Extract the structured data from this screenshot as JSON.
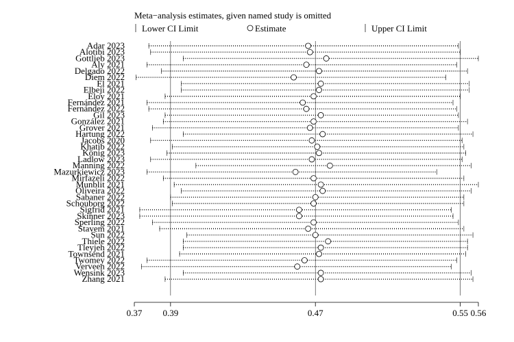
{
  "chart_data": {
    "type": "scatter",
    "title": "Meta−analysis estimates, given named study is omitted",
    "legend": {
      "placement": "top",
      "items": [
        {
          "marker": "line",
          "label": "Lower CI Limit"
        },
        {
          "marker": "circle",
          "label": "Estimate"
        },
        {
          "marker": "line",
          "label": "Upper CI Limit"
        }
      ]
    },
    "x_ticks": [
      "0.37",
      "0.39",
      "0.47",
      "0.55",
      "0.56"
    ],
    "x_tick_values": [
      0.37,
      0.39,
      0.47,
      0.55,
      0.56
    ],
    "xlim": [
      0.37,
      0.56
    ],
    "reference_lines": [
      0.39,
      0.47,
      0.55
    ],
    "series": [
      {
        "name": "Lower CI Limit",
        "values": [
          0.378,
          0.379,
          0.397,
          0.377,
          0.385,
          0.371,
          0.396,
          0.396,
          0.387,
          0.377,
          0.378,
          0.387,
          0.386,
          0.38,
          0.397,
          0.379,
          0.391,
          0.388,
          0.379,
          0.404,
          0.377,
          0.386,
          0.392,
          0.396,
          0.39,
          0.391,
          0.373,
          0.373,
          0.38,
          0.384,
          0.399,
          0.397,
          0.397,
          0.395,
          0.377,
          0.374,
          0.397,
          0.387
        ]
      },
      {
        "name": "Estimate",
        "values": [
          0.466,
          0.467,
          0.476,
          0.465,
          0.472,
          0.458,
          0.473,
          0.472,
          0.469,
          0.463,
          0.465,
          0.473,
          0.469,
          0.467,
          0.474,
          0.468,
          0.471,
          0.472,
          0.468,
          0.478,
          0.459,
          0.469,
          0.473,
          0.474,
          0.47,
          0.469,
          0.461,
          0.461,
          0.469,
          0.466,
          0.47,
          0.477,
          0.473,
          0.472,
          0.464,
          0.46,
          0.473,
          0.473
        ]
      },
      {
        "name": "Upper CI Limit",
        "values": [
          0.549,
          0.55,
          0.56,
          0.548,
          0.554,
          0.542,
          0.555,
          0.555,
          0.55,
          0.546,
          0.548,
          0.549,
          0.554,
          0.549,
          0.557,
          0.551,
          0.552,
          0.553,
          0.551,
          0.556,
          0.537,
          0.552,
          0.56,
          0.556,
          0.552,
          0.552,
          0.545,
          0.546,
          0.549,
          0.552,
          0.557,
          0.554,
          0.554,
          0.553,
          0.548,
          0.545,
          0.556,
          0.557
        ]
      }
    ],
    "studies": [
      "Adar 2023",
      "Alotibi 2023",
      "Gottlieb 2023",
      "Aly 2021",
      "Delgado 2022",
      "Diem 2022",
      "El 2021",
      "Elbeji 2022",
      "Eloy 2021",
      "Fernández 2021",
      "Fernández 2022",
      "Gil 2023",
      "González 2021",
      "Grover 2021",
      "Hartung 2022",
      "Jacobs 2020",
      "Khatib 2022",
      "König 2023",
      "Ladlow 2023",
      "Manning 2022",
      "Mazurkiewicz 2023",
      "Mirfazeli 2022",
      "Munblit 2021",
      "Oliveira 2022",
      "Sabaner 2022",
      "Schouborg 2022",
      "Sigfrid 2021",
      "Skinner 2023",
      "Sperling 2022",
      "Stavem 2021",
      "Sun 2022",
      "Thiele 2022",
      "Tleyjeh 2022",
      "Townsend 2021",
      "Twomey 2022",
      "Verveen 2022",
      "Wensink 2023",
      "Zhang 2021"
    ]
  }
}
